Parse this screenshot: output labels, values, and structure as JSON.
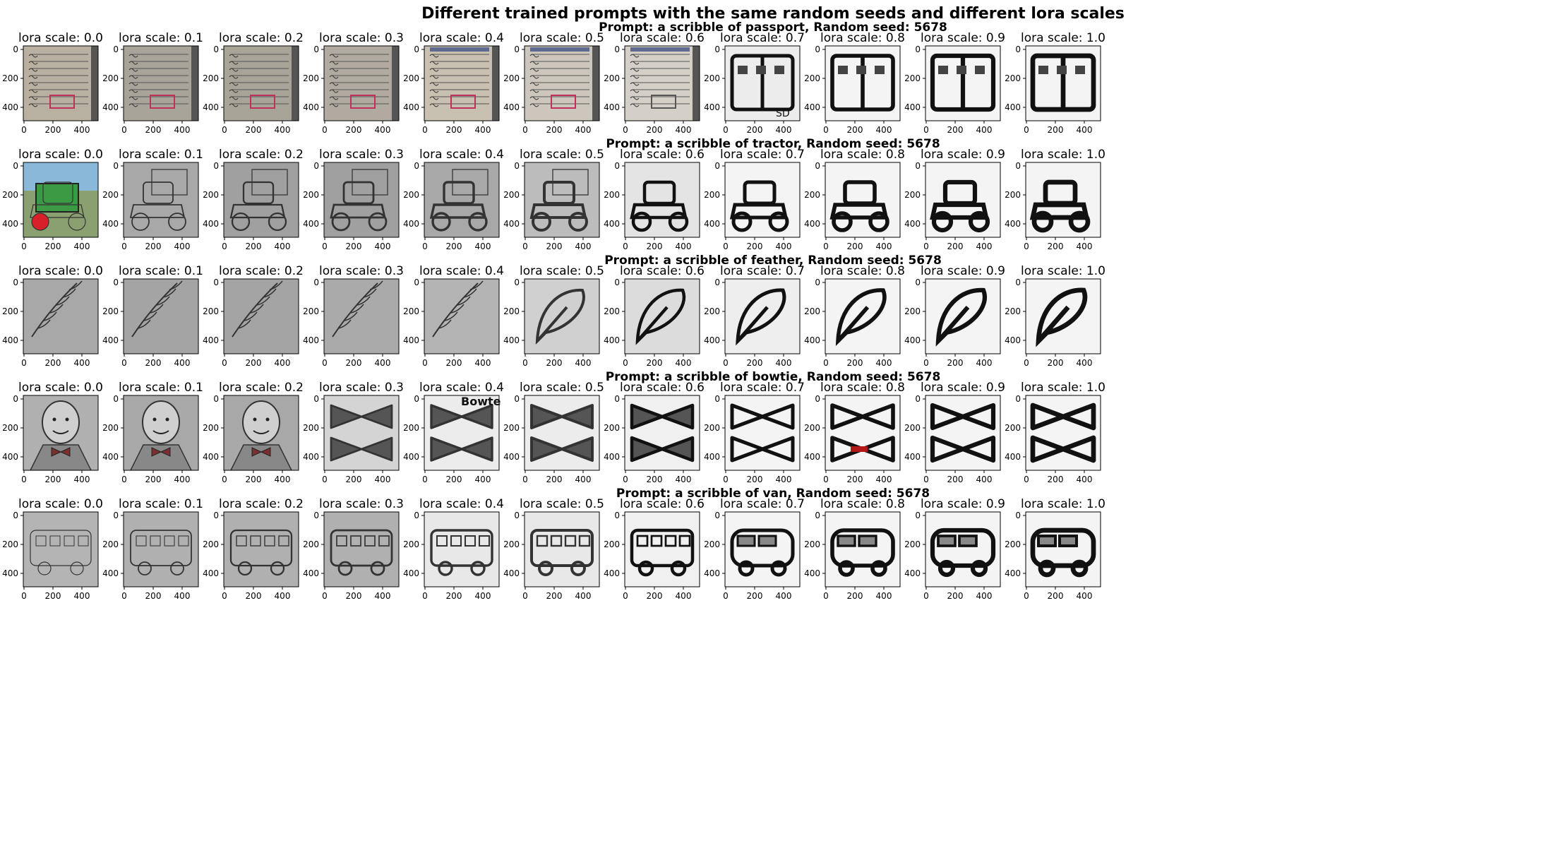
{
  "suptitle": "Different trained prompts with the same random seeds and different lora scales",
  "scale_prefix": "lora scale: ",
  "lora_scales": [
    "0.0",
    "0.1",
    "0.2",
    "0.3",
    "0.4",
    "0.5",
    "0.6",
    "0.7",
    "0.8",
    "0.9",
    "1.0"
  ],
  "yticks": [
    "0",
    "200",
    "400"
  ],
  "xticks": [
    "0",
    "200",
    "400"
  ],
  "rows": [
    {
      "prompt": "Prompt: a scribble of passport, Random seed: 5678",
      "subject": "passport",
      "image_tones": [
        "#b8b0a0",
        "#a8a49a",
        "#a8a498",
        "#b0aaa0",
        "#c8c0b0",
        "#ccc6bc",
        "#d4d0c8",
        "#ececec",
        "#f4f4f4",
        "#f4f4f4",
        "#f4f4f4"
      ]
    },
    {
      "prompt": "Prompt: a scribble of tractor, Random seed: 5678",
      "subject": "tractor",
      "image_tones": [
        "#8aa070",
        "#a8a8a8",
        "#a0a0a0",
        "#a0a0a0",
        "#a8a8a8",
        "#bcbcbc",
        "#e4e4e4",
        "#f4f4f4",
        "#f4f4f4",
        "#f4f4f4",
        "#f4f4f4"
      ]
    },
    {
      "prompt": "Prompt: a scribble of feather, Random seed: 5678",
      "subject": "feather",
      "image_tones": [
        "#a8a8a8",
        "#a4a4a4",
        "#a4a4a4",
        "#aaaaaa",
        "#b4b4b4",
        "#d0d0d0",
        "#dcdcdc",
        "#eeeeee",
        "#f4f4f4",
        "#f4f4f4",
        "#f4f4f4"
      ]
    },
    {
      "prompt": "Prompt: a scribble of bowtie, Random seed: 5678",
      "subject": "bowtie",
      "image_tones": [
        "#b0b0b0",
        "#a8a8a8",
        "#a8a8a8",
        "#d4d4d4",
        "#ececec",
        "#ececec",
        "#f0f0f0",
        "#f4f4f4",
        "#f4f4f4",
        "#f4f4f4",
        "#f4f4f4"
      ]
    },
    {
      "prompt": "Prompt: a scribble of van, Random seed: 5678",
      "subject": "van",
      "image_tones": [
        "#b4b4b4",
        "#b0b0b0",
        "#b0b0b0",
        "#b0b0b0",
        "#e8e8e8",
        "#e8e8e8",
        "#f0f0f0",
        "#f4f4f4",
        "#f4f4f4",
        "#f4f4f4",
        "#f4f4f4"
      ]
    }
  ],
  "bowtie_sample_text": "Bowte",
  "passport_sample_text": "SD"
}
